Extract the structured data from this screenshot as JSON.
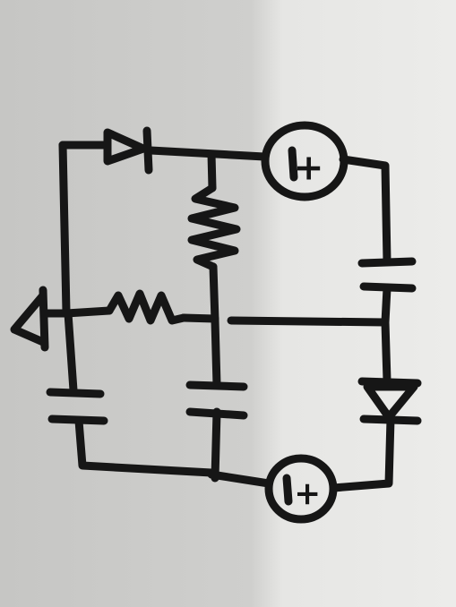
{
  "diagram": {
    "source_labels": {
      "top": "+",
      "bottom": "+"
    },
    "colors": {
      "paper": "#e8e8e6",
      "shadow": "#c8c8c6",
      "ink": "#161616"
    }
  }
}
